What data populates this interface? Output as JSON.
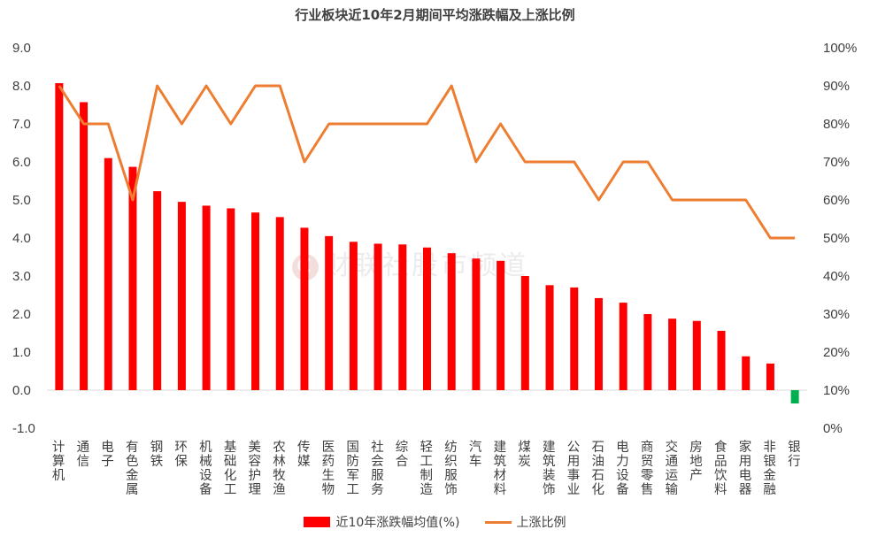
{
  "watermark": "财联社股市频道",
  "watermark_logo": "C",
  "chart_data": {
    "type": "bar",
    "title": "行业板块近10年2月期间平均涨跌幅及上涨比例",
    "categories": [
      "计算机",
      "通信",
      "电子",
      "有色金属",
      "钢铁",
      "环保",
      "机械设备",
      "基础化工",
      "美容护理",
      "农林牧渔",
      "传媒",
      "医药生物",
      "国防军工",
      "社会服务",
      "综合",
      "轻工制造",
      "纺织服饰",
      "汽车",
      "建筑材料",
      "煤炭",
      "建筑装饰",
      "公用事业",
      "石油石化",
      "电力设备",
      "商贸零售",
      "交通运输",
      "房地产",
      "食品饮料",
      "家用电器",
      "非银金融",
      "银行"
    ],
    "series": [
      {
        "name": "近10年涨跌幅均值(%)",
        "type": "bar",
        "axis": "left",
        "values": [
          8.07,
          7.57,
          6.1,
          5.87,
          5.23,
          4.95,
          4.85,
          4.78,
          4.67,
          4.55,
          4.27,
          4.05,
          3.9,
          3.85,
          3.83,
          3.75,
          3.6,
          3.46,
          3.4,
          3.0,
          2.76,
          2.7,
          2.42,
          2.3,
          2.0,
          1.88,
          1.82,
          1.56,
          0.89,
          0.7,
          -0.35
        ],
        "color": "#ff0000",
        "negative_color": "#00b050"
      },
      {
        "name": "上涨比例",
        "type": "line",
        "axis": "right",
        "values": [
          90,
          80,
          80,
          60,
          90,
          80,
          90,
          80,
          90,
          90,
          70,
          80,
          80,
          80,
          80,
          80,
          90,
          70,
          80,
          70,
          70,
          70,
          60,
          70,
          70,
          60,
          60,
          60,
          60,
          50,
          50
        ],
        "color": "#ed7d31"
      }
    ],
    "y_left": {
      "range": [
        -1.0,
        9.0
      ],
      "ticks": [
        "9.0",
        "8.0",
        "7.0",
        "6.0",
        "5.0",
        "4.0",
        "3.0",
        "2.0",
        "1.0",
        "0.0",
        "-1.0"
      ]
    },
    "y_right": {
      "range": [
        0,
        100
      ],
      "ticks": [
        "100%",
        "90%",
        "80%",
        "70%",
        "60%",
        "50%",
        "40%",
        "30%",
        "20%",
        "10%",
        "0%"
      ]
    },
    "grid": false,
    "legend": "bottom"
  }
}
